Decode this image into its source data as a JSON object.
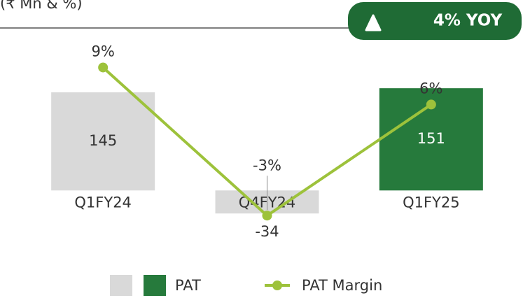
{
  "chart_data": {
    "type": "bar_line",
    "subtitle": "(₹ Mn & %)",
    "annotation": "4% YOY",
    "categories": [
      "Q1FY24",
      "Q4FY24",
      "Q1FY25"
    ],
    "series": [
      {
        "name": "PAT",
        "type": "bar",
        "values": [
          145,
          -34,
          151
        ],
        "colors": [
          "#d9d9d9",
          "#d9d9d9",
          "#267a3c"
        ]
      },
      {
        "name": "PAT Margin",
        "type": "line",
        "axis": "y2",
        "color": "#9dc23b",
        "values": [
          9,
          -3,
          6
        ],
        "value_labels": [
          "9%",
          "-3%",
          "6%"
        ]
      }
    ],
    "ylim": [
      -70,
      240
    ],
    "y2lim": [
      -4.8,
      12.2
    ]
  }
}
